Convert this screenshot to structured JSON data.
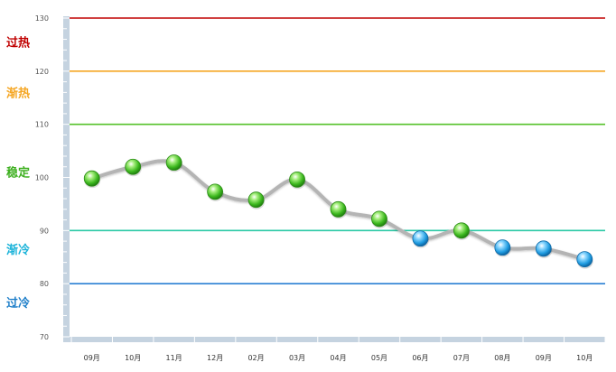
{
  "chart_data": {
    "type": "line",
    "categories": [
      "09月",
      "10月",
      "11月",
      "12月",
      "02月",
      "03月",
      "04月",
      "05月",
      "06月",
      "07月",
      "08月",
      "09月",
      "10月"
    ],
    "series": [
      {
        "values": [
          99.8,
          102.0,
          102.8,
          97.3,
          95.8,
          99.6,
          94.0,
          92.2,
          88.5,
          90.0,
          86.8,
          86.6,
          84.6
        ]
      }
    ],
    "ylim": [
      70,
      130
    ],
    "yticks": [
      70,
      80,
      90,
      100,
      110,
      120,
      130
    ],
    "xlabel": "",
    "ylabel": "",
    "title": "",
    "grid": false,
    "reference_lines": [
      {
        "value": 130,
        "color": "#c00000"
      },
      {
        "value": 120,
        "color": "#f5a623"
      },
      {
        "value": 110,
        "color": "#55c12a"
      },
      {
        "value": 90,
        "color": "#2bc9a6"
      },
      {
        "value": 80,
        "color": "#2a7fd4"
      }
    ],
    "zones": [
      {
        "label": "过热",
        "value": 125.5,
        "color": "#c00000"
      },
      {
        "label": "渐热",
        "value": 116,
        "color": "#f5a623"
      },
      {
        "label": "稳定",
        "value": 101,
        "color": "#3fb021"
      },
      {
        "label": "渐冷",
        "value": 86.5,
        "color": "#1bb3d9"
      },
      {
        "label": "过冷",
        "value": 76.5,
        "color": "#1f7fc9"
      }
    ],
    "marker_threshold": 89,
    "marker_colors": {
      "high": "#39b81f",
      "low": "#1e9be0"
    },
    "line_color": "#b4b4b4",
    "axis_color": "#c5d3e0"
  }
}
